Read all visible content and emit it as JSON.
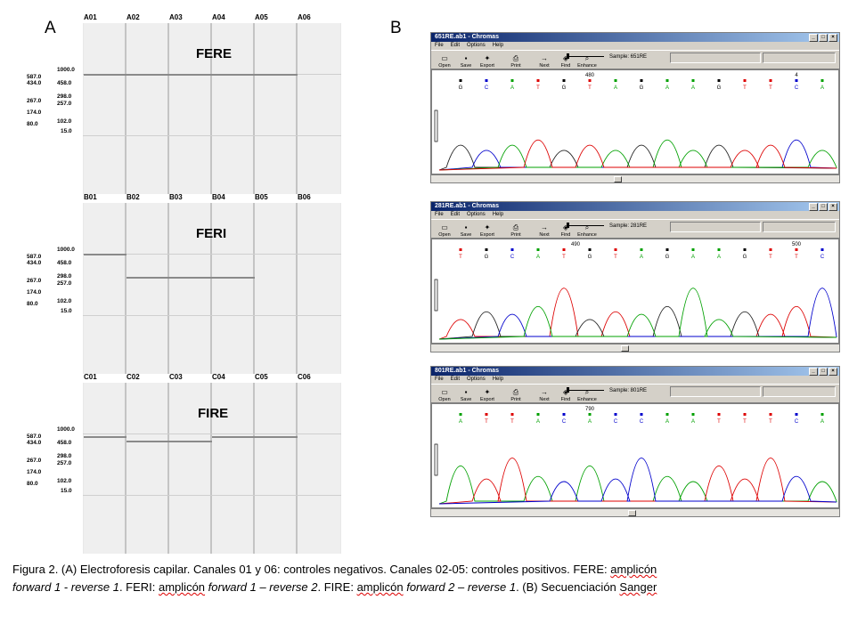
{
  "panels": {
    "a_label": "A",
    "b_label": "B"
  },
  "electrophoresis": {
    "ladder": [
      "1000.0",
      "587.0",
      "434.0",
      "458.0",
      "298.0",
      "257.0",
      "267.0",
      "174.0",
      "102.0",
      "80.0",
      "15.0"
    ],
    "gels": [
      {
        "title": "FERE",
        "lanes": [
          "A01",
          "A02",
          "A03",
          "A04",
          "A05",
          "A06"
        ]
      },
      {
        "title": "FERI",
        "lanes": [
          "B01",
          "B02",
          "B03",
          "B04",
          "B05",
          "B06"
        ]
      },
      {
        "title": "FIRE",
        "lanes": [
          "C01",
          "C02",
          "C03",
          "C04",
          "C05",
          "C06"
        ]
      }
    ]
  },
  "chromas": [
    {
      "title": "651RE.ab1 - Chromas",
      "sample": "Sample: 651RE",
      "positions": [
        "480",
        "4"
      ],
      "bases": [
        "G",
        "C",
        "A",
        "T",
        "G",
        "T",
        "A",
        "G",
        "A",
        "A",
        "G",
        "T",
        "T",
        "C",
        "A"
      ],
      "colors": [
        "#000",
        "#00c",
        "#00a000",
        "#d00",
        "#000",
        "#d00",
        "#00a000",
        "#000",
        "#00a000",
        "#00a000",
        "#000",
        "#d00",
        "#d00",
        "#00c",
        "#00a000"
      ]
    },
    {
      "title": "281RE.ab1 - Chromas",
      "sample": "Sample: 281RE",
      "positions": [
        "490",
        "500"
      ],
      "bases": [
        "T",
        "G",
        "C",
        "A",
        "T",
        "G",
        "T",
        "A",
        "G",
        "A",
        "A",
        "G",
        "T",
        "T",
        "C"
      ],
      "colors": [
        "#d00",
        "#000",
        "#00c",
        "#00a000",
        "#d00",
        "#000",
        "#d00",
        "#00a000",
        "#000",
        "#00a000",
        "#00a000",
        "#000",
        "#d00",
        "#d00",
        "#00c"
      ]
    },
    {
      "title": "801RE.ab1 - Chromas",
      "sample": "Sample: 801RE",
      "positions": [
        "790"
      ],
      "bases": [
        "A",
        "T",
        "T",
        "A",
        "C",
        "A",
        "C",
        "C",
        "A",
        "A",
        "T",
        "T",
        "T",
        "C",
        "A"
      ],
      "colors": [
        "#00a000",
        "#d00",
        "#d00",
        "#00a000",
        "#00c",
        "#00a000",
        "#00c",
        "#00c",
        "#00a000",
        "#00a000",
        "#d00",
        "#d00",
        "#d00",
        "#00c",
        "#00a000"
      ]
    }
  ],
  "menu": [
    "File",
    "Edit",
    "Options",
    "Help"
  ],
  "toolbar": [
    "Open",
    "Save",
    "Export",
    "Print",
    "Next",
    "Find",
    "Enhance"
  ],
  "caption": {
    "p1": "Figura 2. (A) Electroforesis capilar. Canales 01 y 06: controles negativos. Canales 02-05: controles positivos. FERE: ",
    "amp1": "amplicón",
    "i1": "forward 1 - reverse 1",
    "p2": ". FERI: ",
    "amp2": "amplicón",
    "i2": "forward 1 – reverse 2",
    "p3": ". FIRE: ",
    "amp3": "amplicón",
    "i3": "forward 2 – reverse 1",
    "p4": ". (B) Secuenciación ",
    "sanger": "Sanger"
  }
}
